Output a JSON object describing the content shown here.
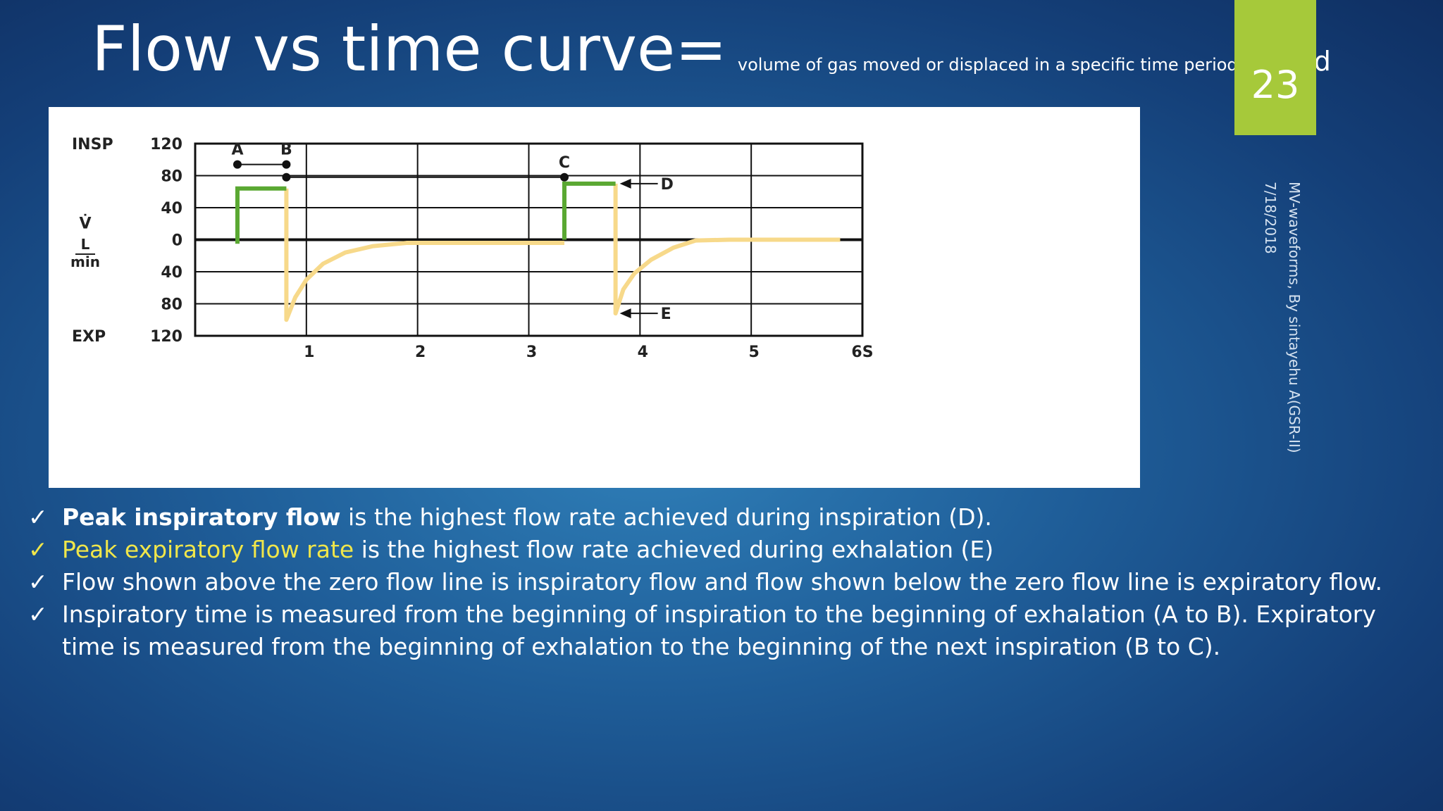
{
  "title": {
    "main": "Flow vs time curve=",
    "sub": "volume of gas moved or displaced in a specific time period",
    "tail": "period"
  },
  "page_number": "23",
  "side": {
    "line1": "MV-waveforms, By sintayehu A(GSR-II)",
    "line2": "7/18/2018"
  },
  "colors": {
    "inspiratory": "#5aa832",
    "expiratory": "#f7d98a",
    "accent": "#a6c93a",
    "highlight": "#f0e64a"
  },
  "chart_data": {
    "type": "line",
    "y_unit_symbol": "V̇",
    "y_unit_top": "L",
    "y_unit_bottom": "min",
    "y_top_label": "INSP",
    "y_bottom_label": "EXP",
    "x_ticks": [
      "1",
      "2",
      "3",
      "4",
      "5",
      "6S"
    ],
    "y_ticks": [
      {
        "value": 120,
        "label": "120"
      },
      {
        "value": 80,
        "label": "80"
      },
      {
        "value": 40,
        "label": "40"
      },
      {
        "value": 0,
        "label": "0"
      },
      {
        "value": -40,
        "label": "40"
      },
      {
        "value": -80,
        "label": "80"
      },
      {
        "value": -120,
        "label": "120"
      }
    ],
    "xlim": [
      0,
      6
    ],
    "ylim": [
      -120,
      120
    ],
    "grid": true,
    "inspiratory_segments": [
      [
        [
          0.38,
          -5
        ],
        [
          0.38,
          64
        ],
        [
          0.82,
          64
        ]
      ],
      [
        [
          3.32,
          0
        ],
        [
          3.32,
          70
        ],
        [
          3.78,
          70
        ]
      ]
    ],
    "expiratory_segments": [
      [
        [
          0.82,
          64
        ],
        [
          0.82,
          -100
        ],
        [
          0.9,
          -72
        ],
        [
          1.0,
          -50
        ],
        [
          1.15,
          -30
        ],
        [
          1.35,
          -16
        ],
        [
          1.6,
          -8
        ],
        [
          1.9,
          -4
        ],
        [
          2.4,
          -4
        ],
        [
          3.0,
          -4
        ],
        [
          3.32,
          -4
        ]
      ],
      [
        [
          3.78,
          70
        ],
        [
          3.78,
          -92
        ],
        [
          3.85,
          -62
        ],
        [
          3.95,
          -42
        ],
        [
          4.1,
          -25
        ],
        [
          4.3,
          -10
        ],
        [
          4.5,
          -1
        ],
        [
          4.8,
          0
        ],
        [
          5.4,
          0
        ],
        [
          5.8,
          0
        ]
      ]
    ],
    "markers": [
      {
        "label": "A",
        "x": 0.38,
        "y": 94
      },
      {
        "label": "B",
        "x": 0.82,
        "y": 94
      },
      {
        "label": "C",
        "x": 3.32,
        "y": 78
      },
      {
        "label": "D",
        "x": 3.78,
        "y": 70
      },
      {
        "label": "E",
        "x": 3.78,
        "y": -92
      }
    ],
    "bars": [
      {
        "from": 0.38,
        "to": 0.82,
        "y": 94
      },
      {
        "from": 0.82,
        "to": 3.32,
        "y": 78
      }
    ]
  },
  "bullets": [
    {
      "bold": "Peak inspiratory flow",
      "text": " is the highest flow rate achieved during inspiration (D)."
    },
    {
      "yellow": "Peak expiratory flow rate",
      "text": " is the highest flow rate achieved during exhalation (E)"
    },
    {
      "text": "Flow shown above the zero flow line is inspiratory flow and flow shown below the zero flow line is expiratory flow."
    },
    {
      "text": "Inspiratory time is measured from the beginning of inspiration to the beginning of exhalation (A to B). Expiratory time is measured from the beginning of exhalation to the beginning of the next inspiration (B to C)."
    }
  ],
  "check_glyph": "✓"
}
